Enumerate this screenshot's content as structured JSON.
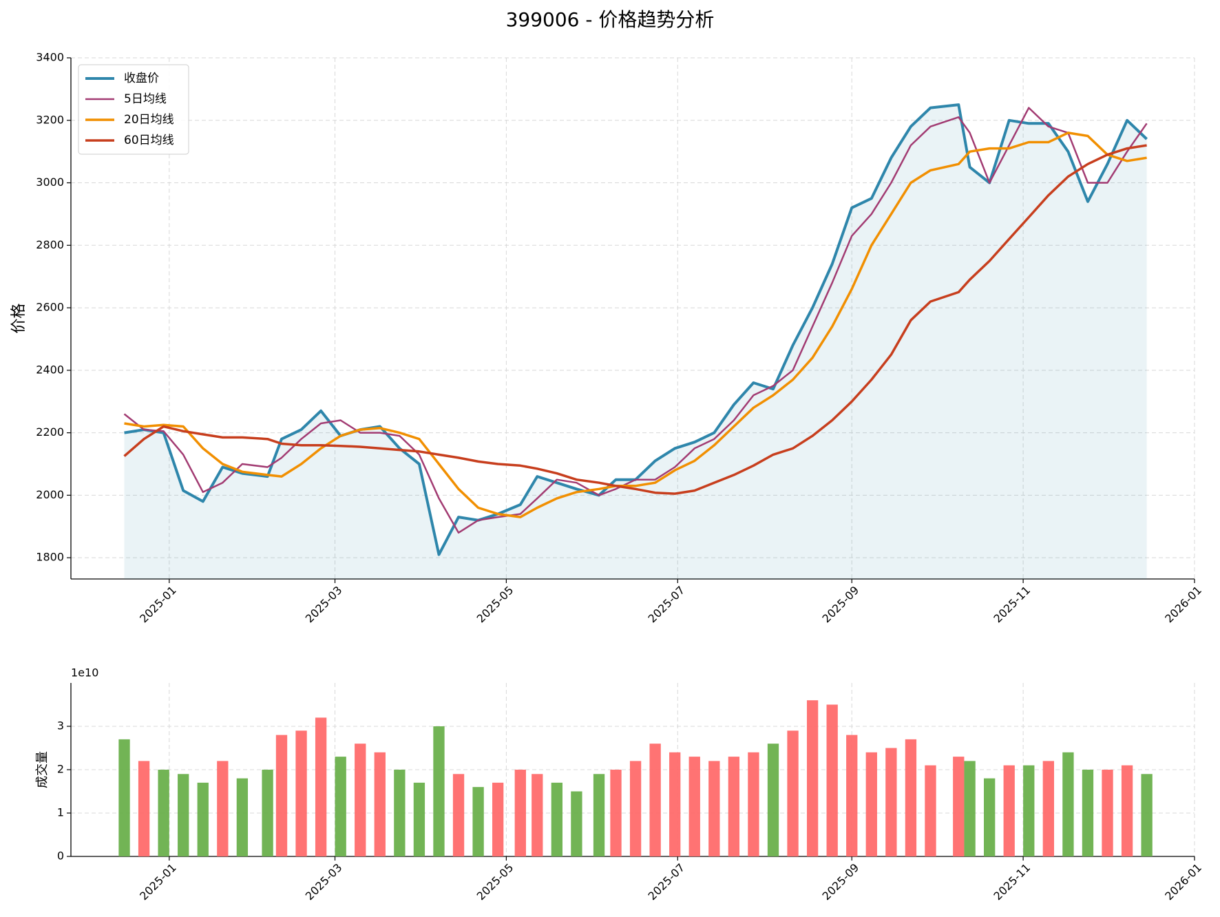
{
  "chart_data": [
    {
      "type": "line",
      "title": "399006 - 价格趋势分析",
      "ylabel": "价格",
      "x": [
        "2024-12-16",
        "2024-12-23",
        "2024-12-30",
        "2025-01-06",
        "2025-01-13",
        "2025-01-20",
        "2025-01-27",
        "2025-02-05",
        "2025-02-10",
        "2025-02-17",
        "2025-02-24",
        "2025-03-03",
        "2025-03-10",
        "2025-03-17",
        "2025-03-24",
        "2025-03-31",
        "2025-04-07",
        "2025-04-14",
        "2025-04-21",
        "2025-04-28",
        "2025-05-06",
        "2025-05-12",
        "2025-05-19",
        "2025-05-26",
        "2025-06-03",
        "2025-06-09",
        "2025-06-16",
        "2025-06-23",
        "2025-06-30",
        "2025-07-07",
        "2025-07-14",
        "2025-07-21",
        "2025-07-28",
        "2025-08-04",
        "2025-08-11",
        "2025-08-18",
        "2025-08-25",
        "2025-09-01",
        "2025-09-08",
        "2025-09-15",
        "2025-09-22",
        "2025-09-29",
        "2025-10-09",
        "2025-10-13",
        "2025-10-20",
        "2025-10-27",
        "2025-11-03",
        "2025-11-10",
        "2025-11-17",
        "2025-11-24",
        "2025-12-01",
        "2025-12-08",
        "2025-12-15"
      ],
      "series": [
        {
          "name": "收盘价",
          "color": "#2e86ab",
          "width": 4,
          "fill": true,
          "values": [
            2200,
            2210,
            2200,
            2015,
            1980,
            2090,
            2070,
            2060,
            2180,
            2210,
            2270,
            2190,
            2210,
            2220,
            2150,
            2100,
            1810,
            1930,
            1920,
            1940,
            1970,
            2060,
            2040,
            2020,
            2000,
            2050,
            2050,
            2110,
            2150,
            2170,
            2200,
            2290,
            2360,
            2340,
            2480,
            2600,
            2740,
            2920,
            2950,
            3080,
            3180,
            3240,
            3250,
            3050,
            3000,
            3200,
            3190,
            3190,
            3100,
            2940,
            3060,
            3200,
            3140
          ]
        },
        {
          "name": "5日均线",
          "color": "#a23b72",
          "width": 2.5,
          "values": [
            2260,
            2210,
            2205,
            2130,
            2010,
            2040,
            2100,
            2090,
            2120,
            2180,
            2230,
            2240,
            2200,
            2200,
            2190,
            2130,
            1990,
            1880,
            1920,
            1930,
            1940,
            1990,
            2050,
            2040,
            2000,
            2020,
            2050,
            2050,
            2090,
            2150,
            2180,
            2240,
            2320,
            2350,
            2400,
            2540,
            2680,
            2830,
            2900,
            3000,
            3120,
            3180,
            3210,
            3160,
            3000,
            3120,
            3240,
            3180,
            3160,
            3000,
            3000,
            3100,
            3190
          ]
        },
        {
          "name": "20日均线",
          "color": "#f18f01",
          "width": 3.5,
          "values": [
            2230,
            2220,
            2225,
            2220,
            2150,
            2100,
            2075,
            2065,
            2060,
            2100,
            2150,
            2190,
            2210,
            2215,
            2200,
            2180,
            2100,
            2020,
            1960,
            1940,
            1930,
            1960,
            1990,
            2010,
            2020,
            2030,
            2030,
            2040,
            2080,
            2110,
            2160,
            2220,
            2280,
            2320,
            2370,
            2440,
            2540,
            2660,
            2800,
            2900,
            3000,
            3040,
            3060,
            3100,
            3110,
            3110,
            3130,
            3130,
            3160,
            3150,
            3090,
            3070,
            3080
          ]
        },
        {
          "name": "60日均线",
          "color": "#c73e1d",
          "width": 3.5,
          "values": [
            2125,
            2180,
            2220,
            2205,
            2195,
            2185,
            2185,
            2180,
            2165,
            2160,
            2160,
            2158,
            2155,
            2150,
            2145,
            2140,
            2130,
            2120,
            2108,
            2100,
            2095,
            2085,
            2070,
            2050,
            2040,
            2030,
            2020,
            2008,
            2005,
            2015,
            2040,
            2065,
            2095,
            2130,
            2150,
            2190,
            2240,
            2300,
            2370,
            2450,
            2560,
            2620,
            2650,
            2690,
            2750,
            2820,
            2890,
            2960,
            3020,
            3060,
            3090,
            3110,
            3120
          ]
        }
      ],
      "xlim": [
        "2024-11-27",
        "2026-01-01"
      ],
      "ylim": [
        1732,
        3400
      ],
      "xticks": [
        "2025-01",
        "2025-03",
        "2025-05",
        "2025-07",
        "2025-09",
        "2025-11",
        "2026-01"
      ],
      "yticks": [
        1800,
        2000,
        2200,
        2400,
        2600,
        2800,
        3000,
        3200,
        3400
      ],
      "grid": true,
      "legend": "upper left"
    },
    {
      "type": "bar",
      "ylabel": "成交量",
      "offset_label": "1e10",
      "up_color": "#ff6b6b",
      "down_color": "#6ab04c",
      "x": [
        "2024-12-16",
        "2024-12-23",
        "2024-12-30",
        "2025-01-06",
        "2025-01-13",
        "2025-01-20",
        "2025-01-27",
        "2025-02-05",
        "2025-02-10",
        "2025-02-17",
        "2025-02-24",
        "2025-03-03",
        "2025-03-10",
        "2025-03-17",
        "2025-03-24",
        "2025-03-31",
        "2025-04-07",
        "2025-04-14",
        "2025-04-21",
        "2025-04-28",
        "2025-05-06",
        "2025-05-12",
        "2025-05-19",
        "2025-05-26",
        "2025-06-03",
        "2025-06-09",
        "2025-06-16",
        "2025-06-23",
        "2025-06-30",
        "2025-07-07",
        "2025-07-14",
        "2025-07-21",
        "2025-07-28",
        "2025-08-04",
        "2025-08-11",
        "2025-08-18",
        "2025-08-25",
        "2025-09-01",
        "2025-09-08",
        "2025-09-15",
        "2025-09-22",
        "2025-09-29",
        "2025-10-09",
        "2025-10-13",
        "2025-10-20",
        "2025-10-27",
        "2025-11-03",
        "2025-11-10",
        "2025-11-17",
        "2025-11-24",
        "2025-12-01",
        "2025-12-08",
        "2025-12-15"
      ],
      "values": [
        27000000000.0,
        22000000000.0,
        20000000000.0,
        19000000000.0,
        17000000000.0,
        22000000000.0,
        18000000000.0,
        20000000000.0,
        28000000000.0,
        29000000000.0,
        32000000000.0,
        23000000000.0,
        26000000000.0,
        24000000000.0,
        20000000000.0,
        17000000000.0,
        30000000000.0,
        19000000000.0,
        16000000000.0,
        17000000000.0,
        20000000000.0,
        19000000000.0,
        17000000000.0,
        15000000000.0,
        19000000000.0,
        20000000000.0,
        22000000000.0,
        26000000000.0,
        24000000000.0,
        23000000000.0,
        22000000000.0,
        23000000000.0,
        24000000000.0,
        26000000000.0,
        29000000000.0,
        36000000000.0,
        35000000000.0,
        28000000000.0,
        24000000000.0,
        25000000000.0,
        27000000000.0,
        21000000000.0,
        23000000000.0,
        22000000000.0,
        18000000000.0,
        21000000000.0,
        21000000000.0,
        22000000000.0,
        24000000000.0,
        20000000000.0,
        20000000000.0,
        21000000000.0,
        19000000000.0
      ],
      "xlim": [
        "2024-11-27",
        "2026-01-01"
      ],
      "ylim": [
        0,
        40000000000.0
      ],
      "xticks": [
        "2025-01",
        "2025-03",
        "2025-05",
        "2025-07",
        "2025-09",
        "2025-11",
        "2026-01"
      ],
      "yticks": [
        0,
        {
          "value": 10000000000.0,
          "label": "1"
        },
        {
          "value": 20000000000.0,
          "label": "2"
        },
        {
          "value": 30000000000.0,
          "label": "3"
        }
      ],
      "grid": true
    }
  ]
}
